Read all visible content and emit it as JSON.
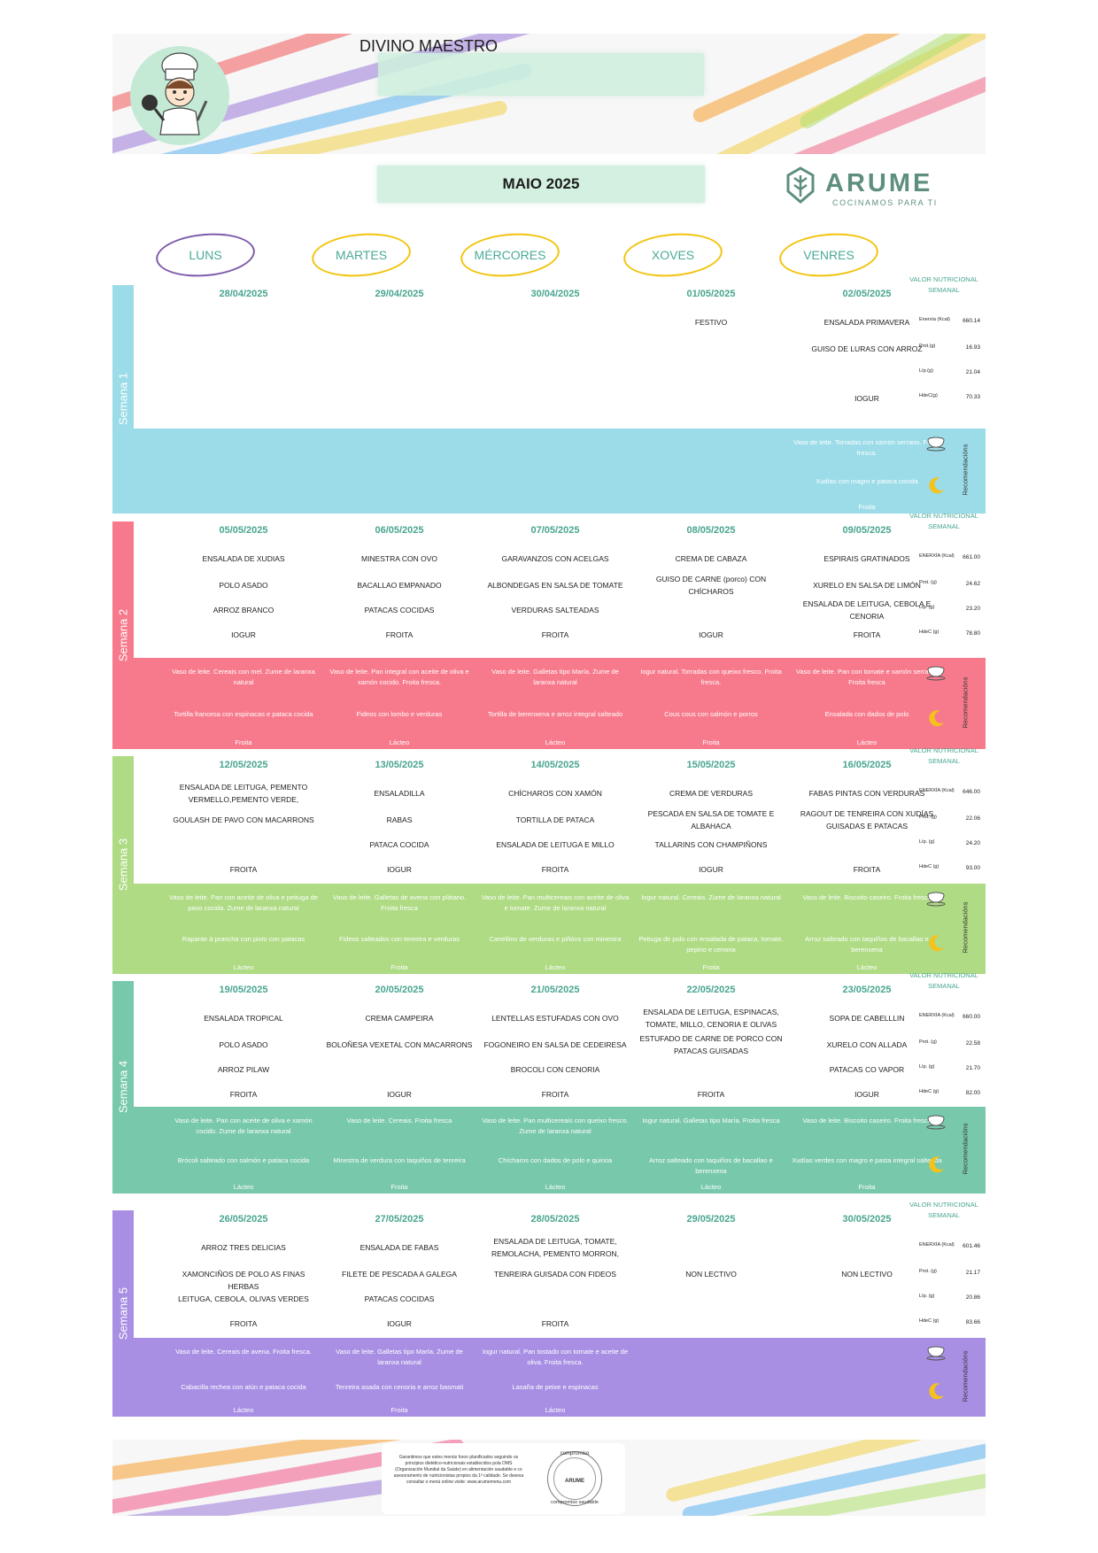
{
  "header": {
    "title": "DIVINO MAESTRO",
    "month": "MAIO 2025"
  },
  "logo": {
    "name": "ARUME",
    "tagline": "COCINAMOS PARA TI",
    "icon": "leaf-icon"
  },
  "days": [
    "LUNS",
    "MARTES",
    "MÉRCORES",
    "XOVES",
    "VENRES"
  ],
  "labels": {
    "value_heading": "VALOR NUTRICIONAL SEMANAL",
    "recommendations": "Recomendacións"
  },
  "colors": {
    "week1": "#9bdce8",
    "week2": "#f77a8c",
    "week3": "#aedb84",
    "week4": "#78c8ac",
    "week5": "#a88fe4",
    "accent": "#48a58f"
  },
  "weeks": [
    {
      "label": "Semana 1",
      "dates": [
        "28/04/2025",
        "29/04/2025",
        "30/04/2025",
        "01/05/2025",
        "02/05/2025"
      ],
      "menu": [
        [],
        [],
        [],
        [
          "FESTIVO"
        ],
        [
          "ENSALADA PRIMAVERA",
          "GUISO DE LURAS CON ARROZ",
          "",
          "IOGUR"
        ]
      ],
      "nutrition": [
        {
          "label": "Enerxía (Kcal)",
          "value": "660.14"
        },
        {
          "label": "Prot.(g)",
          "value": "16.93"
        },
        {
          "label": "Líp.(g)",
          "value": "21.04"
        },
        {
          "label": "HdeC(g)",
          "value": "70.33"
        }
      ],
      "recs": [
        {
          "lunch": "",
          "dinner": "",
          "snack": ""
        },
        {
          "lunch": "",
          "dinner": "",
          "snack": ""
        },
        {
          "lunch": "",
          "dinner": "",
          "snack": ""
        },
        {
          "lunch": "",
          "dinner": "",
          "snack": ""
        },
        {
          "lunch": "Vaso de leite. Torradas con xamón serrano. Froita fresca.",
          "dinner": "Xudías con magro e pataca cocida",
          "snack": "Froita"
        }
      ]
    },
    {
      "label": "Semana 2",
      "dates": [
        "05/05/2025",
        "06/05/2025",
        "07/05/2025",
        "08/05/2025",
        "09/05/2025"
      ],
      "menu": [
        [
          "ENSALADA DE XUDIAS",
          "POLO ASADO",
          "ARROZ BRANCO",
          "IOGUR"
        ],
        [
          "MINESTRA CON OVO",
          "BACALLAO EMPANADO",
          "PATACAS COCIDAS",
          "FROITA"
        ],
        [
          "GARAVANZOS CON ACELGAS",
          "ALBONDEGAS EN SALSA DE TOMATE",
          "VERDURAS SALTEADAS",
          "FROITA"
        ],
        [
          "CREMA DE CABAZA",
          "GUISO DE CARNE (porco) CON CHÍCHAROS",
          "",
          "IOGUR"
        ],
        [
          "ESPIRAIS GRATINADOS",
          "XURELO EN SALSA DE LIMÓN",
          "ENSALADA DE LEITUGA, CEBOLA E CENORIA",
          "FROITA"
        ]
      ],
      "nutrition": [
        {
          "label": "ENERXÍA (Kcal)",
          "value": "661.00"
        },
        {
          "label": "Prot. (g)",
          "value": "24.62"
        },
        {
          "label": "Líp. (g)",
          "value": "23.20"
        },
        {
          "label": "HdeC (g)",
          "value": "78.80"
        }
      ],
      "recs": [
        {
          "lunch": "Vaso de leite. Cereais con mel. Zume de laranxa natural",
          "dinner": "Tortilla francesa con espinacas e pataca cocida",
          "snack": "Froita"
        },
        {
          "lunch": "Vaso de leite. Pan integral con aceite de oliva e xamón cocido. Froita fresca.",
          "dinner": "Fideos con lombo e verduras",
          "snack": "Lácteo"
        },
        {
          "lunch": "Vaso de leite. Galletas tipo María. Zume de laranxa natural",
          "dinner": "Tortilla de berenxena e arroz integral salteado",
          "snack": "Lácteo"
        },
        {
          "lunch": "Iogur natural. Torradas con queixo fresco. Froita fresca.",
          "dinner": "Cous cous con salmón e porros",
          "snack": "Froita"
        },
        {
          "lunch": "Vaso de leite. Pan con tomate e xamón serrano. Froita fresca",
          "dinner": "Ensalada con dados de polo",
          "snack": "Lácteo"
        }
      ]
    },
    {
      "label": "Semana 3",
      "dates": [
        "12/05/2025",
        "13/05/2025",
        "14/05/2025",
        "15/05/2025",
        "16/05/2025"
      ],
      "menu": [
        [
          "ENSALADA DE LEITUGA, PEMENTO VERMELLO,PEMENTO VERDE,",
          "GOULASH DE PAVO CON MACARRONS",
          "",
          "FROITA"
        ],
        [
          "ENSALADILLA",
          "RABAS",
          "PATACA COCIDA",
          "IOGUR"
        ],
        [
          "CHÍCHAROS CON XAMÓN",
          "TORTILLA DE PATACA",
          "ENSALADA DE LEITUGA E MILLO",
          "FROITA"
        ],
        [
          "CREMA DE VERDURAS",
          "PESCADA EN SALSA DE TOMATE E ALBAHACA",
          "TALLARINS CON CHAMPIÑONS",
          "IOGUR"
        ],
        [
          "FABAS PINTAS CON VERDURAS",
          "RAGOUT DE TENREIRA CON XUDÍAS GUISADAS E PATACAS",
          "",
          "FROITA"
        ]
      ],
      "nutrition": [
        {
          "label": "ENERXÍA (Kcal)",
          "value": "646.00"
        },
        {
          "label": "Prot. (g)",
          "value": "22.06"
        },
        {
          "label": "Líp. (g)",
          "value": "24.20"
        },
        {
          "label": "HdeC (g)",
          "value": "93.00"
        }
      ],
      "recs": [
        {
          "lunch": "Vaso de leite. Pan con aceite de oliva e peituga de pavo cocida. Zume de laranxa natural",
          "dinner": "Rapante á prancha con pisto con patacas",
          "snack": "Lácteo"
        },
        {
          "lunch": "Vaso de leite. Galletas de avena con plátano. Froita fresca",
          "dinner": "Fideos salteados con tenreira e verduras",
          "snack": "Froita"
        },
        {
          "lunch": "Vaso de leite. Pan multicereais con aceite de oliva e tomate. Zume de laranxa natural",
          "dinner": "Canelóns de verduras e piñóns con minestra",
          "snack": "Lácteo"
        },
        {
          "lunch": "Iogur natural. Cereais. Zume de laranxa natural",
          "dinner": "Peituga de polo con ensalada de pataca, tomate, pepino e cenoria",
          "snack": "Froita"
        },
        {
          "lunch": "Vaso de leite. Biscoito caseiro. Froita fresca",
          "dinner": "Arroz salteado con taquiños de bacallao e berenxena",
          "snack": "Lácteo"
        }
      ]
    },
    {
      "label": "Semana 4",
      "dates": [
        "19/05/2025",
        "20/05/2025",
        "21/05/2025",
        "22/05/2025",
        "23/05/2025"
      ],
      "menu": [
        [
          "ENSALADA TROPICAL",
          "POLO ASADO",
          "ARROZ PILAW",
          "FROITA"
        ],
        [
          "CREMA CAMPEIRA",
          "BOLOÑESA VEXETAL CON MACARRONS",
          "",
          "IOGUR"
        ],
        [
          "LENTELLAS ESTUFADAS CON OVO",
          "FOGONEIRO EN SALSA DE CEDEIRESA",
          "BROCOLI CON CENORIA",
          "FROITA"
        ],
        [
          "ENSALADA DE LEITUGA, ESPINACAS, TOMATE, MILLO, CENORIA E OLIVAS",
          "ESTUFADO DE CARNE DE PORCO CON PATACAS GUISADAS",
          "",
          "FROITA"
        ],
        [
          "SOPA DE CABELLLIN",
          "XURELO CON ALLADA",
          "PATACAS CO VAPOR",
          "IOGUR"
        ]
      ],
      "nutrition": [
        {
          "label": "ENERXÍA (Kcal)",
          "value": "660.00"
        },
        {
          "label": "Prot. (g)",
          "value": "22.58"
        },
        {
          "label": "Líp. (g)",
          "value": "21.70"
        },
        {
          "label": "HdeC (g)",
          "value": "82.00"
        }
      ],
      "recs": [
        {
          "lunch": "Vaso de leite. Pan con aceite de oliva e xamón cocido. Zume de laranxa natural",
          "dinner": "Brócoli salteado con salmón e pataca cocida",
          "snack": "Lácteo"
        },
        {
          "lunch": "Vaso de leite. Cereais. Froita fresca",
          "dinner": "Minestra de verdura con taquiños de tenreira",
          "snack": "Froita"
        },
        {
          "lunch": "Vaso de leite. Pan multicereais con queixo fresco. Zume de laranxa natural",
          "dinner": "Chícharos con dados de polo e quinoa",
          "snack": "Lácteo"
        },
        {
          "lunch": "Iogur natural. Galletas tipo María. Froita fresca",
          "dinner": "Arroz salteado con taquiños de bacallao e berenxena",
          "snack": "Lácteo"
        },
        {
          "lunch": "Vaso de leite. Biscoito caseiro. Froita fresca",
          "dinner": "Xudías verdes con magro e pasta integral salteada",
          "snack": "Froita"
        }
      ]
    },
    {
      "label": "Semana 5",
      "dates": [
        "26/05/2025",
        "27/05/2025",
        "28/05/2025",
        "29/05/2025",
        "30/05/2025"
      ],
      "menu": [
        [
          "ARROZ TRES DELICIAS",
          "XAMONCIÑOS DE POLO AS FINAS HERBAS",
          "LEITUGA, CEBOLA, OLIVAS VERDES",
          "FROITA"
        ],
        [
          "ENSALADA DE FABAS",
          "FILETE DE PESCADA A GALEGA",
          "PATACAS COCIDAS",
          "IOGUR"
        ],
        [
          "ENSALADA DE LEITUGA, TOMATE, REMOLACHA, PEMENTO MORRON,",
          "TENREIRA GUISADA CON FIDEOS",
          "",
          "FROITA"
        ],
        [
          "",
          "NON LECTIVO",
          "",
          ""
        ],
        [
          "",
          "NON LECTIVO",
          "",
          ""
        ]
      ],
      "nutrition": [
        {
          "label": "ENERXÍA (Kcal)",
          "value": "601.46"
        },
        {
          "label": "Prot. (g)",
          "value": "21.17"
        },
        {
          "label": "Líp. (g)",
          "value": "20.86"
        },
        {
          "label": "HdeC (g)",
          "value": "83.66"
        }
      ],
      "recs": [
        {
          "lunch": "Vaso de leite. Cereais de avena. Froita fresca.",
          "dinner": "Cabacilla rechea con atún e pataca cocida",
          "snack": "Lácteo"
        },
        {
          "lunch": "Vaso de leite. Galletas tipo María. Zume de laranxa natural",
          "dinner": "Tenreira asada con cenoria e arroz basmati",
          "snack": "Froita"
        },
        {
          "lunch": "Iogur natural. Pan tostado con tomate e aceite de oliva. Froita fresca.",
          "dinner": "Lasaña de peixe e espinacas",
          "snack": "Lácteo"
        },
        {
          "lunch": "",
          "dinner": "",
          "snack": ""
        },
        {
          "lunch": "",
          "dinner": "",
          "snack": ""
        }
      ]
    }
  ],
  "footer": {
    "text": "Garantimos que estes menús foron planificados seguindo os principios dietético-nutricionais establecidos pola OMS (Organización Mundial da Saúde) en alimentación saudable e co asesoramento de nutricionistas propios da 1ª calidade. Se desexa consultar o menú online visite: www.arumemenu.com",
    "seal_top": "compromiso",
    "seal_mid": "ARUME",
    "seal_bottom": "compromiso saudable"
  }
}
